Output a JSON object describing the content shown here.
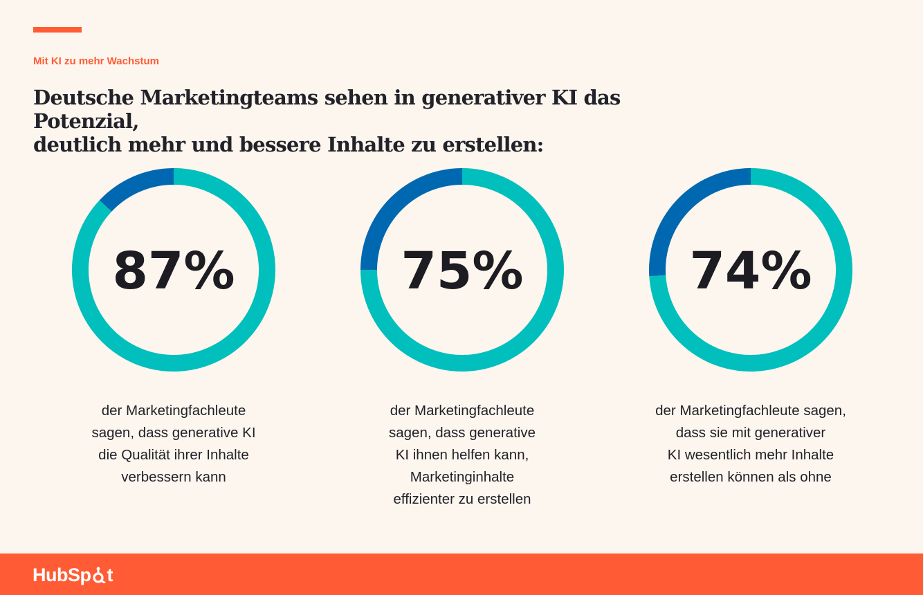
{
  "eyebrow": "Mit KI zu mehr Wachstum",
  "headline_line1": "Deutsche Marketingteams sehen in generativer KI das Potenzial,",
  "headline_line2": "deutlich mehr und bessere Inhalte zu erstellen:",
  "colors": {
    "accent": "#FF5C35",
    "main_segment": "#00BFBD",
    "remainder_segment": "#0068B1",
    "background": "#FDF6EE"
  },
  "chart_data": [
    {
      "type": "pie",
      "label": "87%",
      "value": 87,
      "remainder": 13,
      "caption": [
        "der Marketingfachleute",
        "sagen, dass generative KI",
        "die Qualität ihrer Inhalte",
        "verbessern kann"
      ]
    },
    {
      "type": "pie",
      "label": "75%",
      "value": 75,
      "remainder": 25,
      "caption": [
        "der Marketingfachleute",
        "sagen, dass generative",
        "KI ihnen helfen kann,",
        "Marketinginhalte",
        "effizienter zu erstellen"
      ]
    },
    {
      "type": "pie",
      "label": "74%",
      "value": 74,
      "remainder": 26,
      "caption": [
        "der Marketingfachleute sagen,",
        "dass sie mit generativer",
        "KI wesentlich mehr Inhalte",
        "erstellen können als ohne"
      ]
    }
  ],
  "footer": {
    "logo_text_a": "HubSp",
    "logo_text_b": "t"
  }
}
